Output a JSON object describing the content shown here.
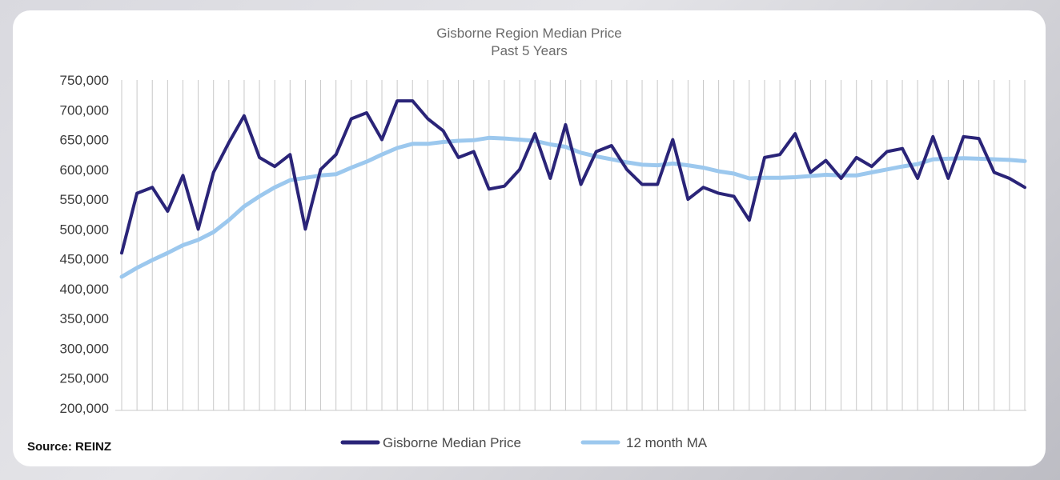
{
  "chart_data": {
    "type": "line",
    "title": "Gisborne Region Median Price",
    "subtitle": "Past 5 Years",
    "ylim": [
      200000,
      750000
    ],
    "y_ticks": [
      "200,000",
      "250,000",
      "300,000",
      "350,000",
      "400,000",
      "450,000",
      "500,000",
      "550,000",
      "600,000",
      "650,000",
      "700,000",
      "750,000"
    ],
    "y_tick_values": [
      200000,
      250000,
      300000,
      350000,
      400000,
      450000,
      500000,
      550000,
      600000,
      650000,
      700000,
      750000
    ],
    "grid": "vertical",
    "legend_position": "bottom",
    "series": [
      {
        "name": "Gisborne Median Price",
        "color": "#2a2478",
        "values": [
          460000,
          560000,
          570000,
          530000,
          590000,
          500000,
          595000,
          645000,
          690000,
          620000,
          605000,
          625000,
          500000,
          600000,
          625000,
          685000,
          695000,
          650000,
          715000,
          715000,
          685000,
          665000,
          620000,
          630000,
          567000,
          572000,
          600000,
          660000,
          585000,
          675000,
          575000,
          630000,
          640000,
          600000,
          575000,
          575000,
          650000,
          550000,
          570000,
          560000,
          555000,
          515000,
          620000,
          625000,
          660000,
          595000,
          615000,
          585000,
          620000,
          605000,
          630000,
          635000,
          585000,
          655000,
          585000,
          655000,
          652000,
          595000,
          585000,
          570000
        ]
      },
      {
        "name": "12 month MA",
        "color": "#9cc8ee",
        "values": [
          420000,
          435000,
          448000,
          460000,
          473000,
          482000,
          495000,
          515000,
          538000,
          555000,
          570000,
          582000,
          586000,
          590000,
          592000,
          603000,
          613000,
          625000,
          636000,
          643000,
          643000,
          646000,
          648000,
          649000,
          653000,
          652000,
          650000,
          648000,
          642000,
          638000,
          628000,
          622000,
          617000,
          612000,
          608000,
          607000,
          610000,
          607000,
          603000,
          597000,
          593000,
          585000,
          586000,
          586000,
          587000,
          589000,
          591000,
          590000,
          590000,
          595000,
          600000,
          605000,
          609000,
          617000,
          618000,
          619000,
          618000,
          617000,
          616000,
          614000
        ]
      }
    ]
  },
  "source_label": "Source: REINZ"
}
